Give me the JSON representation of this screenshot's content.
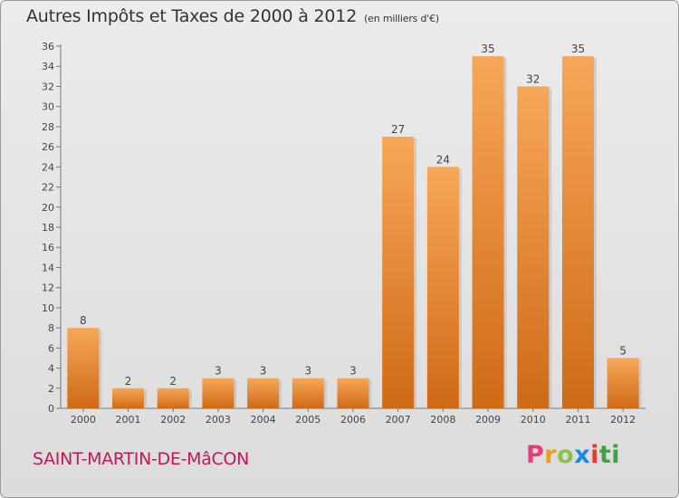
{
  "header": {
    "title": "Autres Impôts et Taxes de 2000 à 2012",
    "unit": "(en milliers d'€)"
  },
  "footer": {
    "commune": "SAINT-MARTIN-DE-MâCON",
    "brand": "Proxiti",
    "brand_letters": [
      "P",
      "r",
      "o",
      "x",
      "i",
      "ti"
    ]
  },
  "colors": {
    "bar_light": "#f7a758",
    "bar_dark": "#cf6a16",
    "commune_text": "#c2185b"
  },
  "chart_data": {
    "type": "bar",
    "categories": [
      "2000",
      "2001",
      "2002",
      "2003",
      "2004",
      "2005",
      "2006",
      "2007",
      "2008",
      "2009",
      "2010",
      "2011",
      "2012"
    ],
    "values": [
      8,
      2,
      2,
      3,
      3,
      3,
      3,
      27,
      24,
      35,
      32,
      35,
      5
    ],
    "title": "Autres Impôts et Taxes de 2000 à 2012",
    "xlabel": "",
    "ylabel": "",
    "ylim": [
      0,
      36
    ],
    "yticks": [
      0,
      2,
      4,
      6,
      8,
      10,
      12,
      14,
      16,
      18,
      20,
      22,
      24,
      26,
      28,
      30,
      32,
      34,
      36
    ],
    "grid": false,
    "legend": "none",
    "data_labels": true
  }
}
